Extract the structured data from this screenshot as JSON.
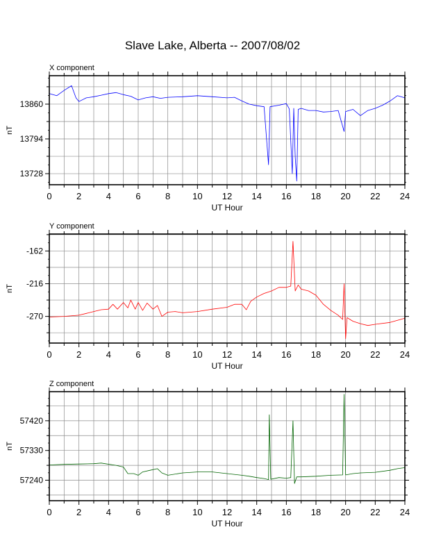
{
  "title": "Slave Lake, Alberta -- 2007/08/02",
  "chart_data": [
    {
      "type": "line",
      "title": "X component",
      "xlabel": "UT Hour",
      "ylabel": "nT",
      "xlim": [
        0,
        24
      ],
      "ylim": [
        13707,
        13914
      ],
      "xticks": [
        0,
        2,
        4,
        6,
        8,
        10,
        12,
        14,
        16,
        18,
        20,
        22,
        24
      ],
      "yticks": [
        13728,
        13794,
        13860
      ],
      "grid": true,
      "color": "#0000ff",
      "series": [
        {
          "points": [
            [
              0,
              13880
            ],
            [
              0.5,
              13876
            ],
            [
              1.0,
              13886
            ],
            [
              1.5,
              13895
            ],
            [
              1.8,
              13872
            ],
            [
              2.0,
              13865
            ],
            [
              2.5,
              13872
            ],
            [
              3.0,
              13874
            ],
            [
              3.5,
              13877
            ],
            [
              4.0,
              13880
            ],
            [
              4.5,
              13882
            ],
            [
              5.0,
              13878
            ],
            [
              5.5,
              13875
            ],
            [
              6.0,
              13868
            ],
            [
              6.5,
              13872
            ],
            [
              7.0,
              13874
            ],
            [
              7.5,
              13871
            ],
            [
              8.0,
              13873
            ],
            [
              9.0,
              13874
            ],
            [
              10.0,
              13876
            ],
            [
              11.0,
              13874
            ],
            [
              12.0,
              13872
            ],
            [
              12.5,
              13873
            ],
            [
              13.0,
              13866
            ],
            [
              13.5,
              13860
            ],
            [
              14.0,
              13857
            ],
            [
              14.5,
              13855
            ],
            [
              14.8,
              13745
            ],
            [
              14.9,
              13855
            ],
            [
              15.5,
              13858
            ],
            [
              16.0,
              13861
            ],
            [
              16.2,
              13851
            ],
            [
              16.4,
              13728
            ],
            [
              16.5,
              13852
            ],
            [
              16.6,
              13760
            ],
            [
              16.7,
              13714
            ],
            [
              16.8,
              13850
            ],
            [
              17.0,
              13852
            ],
            [
              17.5,
              13848
            ],
            [
              18.0,
              13848
            ],
            [
              18.5,
              13845
            ],
            [
              19.0,
              13846
            ],
            [
              19.5,
              13848
            ],
            [
              19.9,
              13808
            ],
            [
              20.0,
              13846
            ],
            [
              20.5,
              13850
            ],
            [
              21.0,
              13838
            ],
            [
              21.5,
              13848
            ],
            [
              22.0,
              13852
            ],
            [
              22.5,
              13858
            ],
            [
              23.0,
              13866
            ],
            [
              23.5,
              13876
            ],
            [
              24.0,
              13872
            ]
          ]
        }
      ]
    },
    {
      "type": "line",
      "title": "Y component",
      "xlabel": "UT Hour",
      "ylabel": "nT",
      "xlim": [
        0,
        24
      ],
      "ylim": [
        -314,
        -134
      ],
      "xticks": [
        0,
        2,
        4,
        6,
        8,
        10,
        12,
        14,
        16,
        18,
        20,
        22,
        24
      ],
      "yticks": [
        -270,
        -216,
        -162
      ],
      "grid": true,
      "color": "#ff0000",
      "series": [
        {
          "points": [
            [
              0,
              -271
            ],
            [
              1,
              -270
            ],
            [
              2,
              -268
            ],
            [
              2.5,
              -265
            ],
            [
              3,
              -262
            ],
            [
              3.5,
              -259
            ],
            [
              4,
              -258
            ],
            [
              4.3,
              -250
            ],
            [
              4.6,
              -258
            ],
            [
              5.0,
              -247
            ],
            [
              5.3,
              -256
            ],
            [
              5.5,
              -243
            ],
            [
              5.8,
              -258
            ],
            [
              6.0,
              -247
            ],
            [
              6.3,
              -260
            ],
            [
              6.6,
              -248
            ],
            [
              7.0,
              -258
            ],
            [
              7.3,
              -252
            ],
            [
              7.6,
              -270
            ],
            [
              8,
              -263
            ],
            [
              8.5,
              -262
            ],
            [
              9,
              -264
            ],
            [
              10,
              -262
            ],
            [
              11,
              -258
            ],
            [
              12,
              -255
            ],
            [
              12.5,
              -250
            ],
            [
              13,
              -250
            ],
            [
              13.3,
              -259
            ],
            [
              13.6,
              -245
            ],
            [
              14,
              -238
            ],
            [
              14.5,
              -232
            ],
            [
              15,
              -228
            ],
            [
              15.5,
              -222
            ],
            [
              16,
              -222
            ],
            [
              16.3,
              -220
            ],
            [
              16.45,
              -146
            ],
            [
              16.6,
              -228
            ],
            [
              16.8,
              -218
            ],
            [
              17,
              -225
            ],
            [
              17.5,
              -228
            ],
            [
              18,
              -235
            ],
            [
              18.5,
              -250
            ],
            [
              19,
              -260
            ],
            [
              19.5,
              -268
            ],
            [
              19.8,
              -275
            ],
            [
              19.9,
              -216
            ],
            [
              20.0,
              -307
            ],
            [
              20.1,
              -272
            ],
            [
              20.5,
              -278
            ],
            [
              21,
              -282
            ],
            [
              21.5,
              -285
            ],
            [
              22,
              -283
            ],
            [
              23,
              -280
            ],
            [
              24,
              -273
            ]
          ]
        }
      ]
    },
    {
      "type": "line",
      "title": "Z component",
      "xlabel": "UT Hour",
      "ylabel": "nT",
      "xlim": [
        0,
        24
      ],
      "ylim": [
        57178,
        57508
      ],
      "xticks": [
        0,
        2,
        4,
        6,
        8,
        10,
        12,
        14,
        16,
        18,
        20,
        22,
        24
      ],
      "yticks": [
        57240,
        57330,
        57420
      ],
      "grid": true,
      "color": "#006400",
      "series": [
        {
          "points": [
            [
              0,
              57286
            ],
            [
              1,
              57288
            ],
            [
              2,
              57289
            ],
            [
              3,
              57290
            ],
            [
              3.5,
              57292
            ],
            [
              4.5,
              57285
            ],
            [
              5.0,
              57280
            ],
            [
              5.3,
              57260
            ],
            [
              5.7,
              57260
            ],
            [
              6.0,
              57255
            ],
            [
              6.3,
              57265
            ],
            [
              6.8,
              57270
            ],
            [
              7.3,
              57275
            ],
            [
              7.6,
              57262
            ],
            [
              8.0,
              57255
            ],
            [
              9.0,
              57262
            ],
            [
              10,
              57265
            ],
            [
              11,
              57265
            ],
            [
              12,
              57260
            ],
            [
              13,
              57255
            ],
            [
              13.5,
              57252
            ],
            [
              14,
              57248
            ],
            [
              14.5,
              57245
            ],
            [
              14.8,
              57242
            ],
            [
              14.85,
              57438
            ],
            [
              14.95,
              57243
            ],
            [
              15.5,
              57248
            ],
            [
              16,
              57246
            ],
            [
              16.3,
              57248
            ],
            [
              16.45,
              57420
            ],
            [
              16.55,
              57230
            ],
            [
              16.7,
              57250
            ],
            [
              17,
              57250
            ],
            [
              18,
              57252
            ],
            [
              19,
              57255
            ],
            [
              19.8,
              57256
            ],
            [
              19.9,
              57500
            ],
            [
              20.0,
              57256
            ],
            [
              20.5,
              57260
            ],
            [
              21,
              57262
            ],
            [
              22,
              57264
            ],
            [
              23,
              57270
            ],
            [
              23.5,
              57275
            ],
            [
              24,
              57278
            ]
          ]
        }
      ]
    }
  ]
}
